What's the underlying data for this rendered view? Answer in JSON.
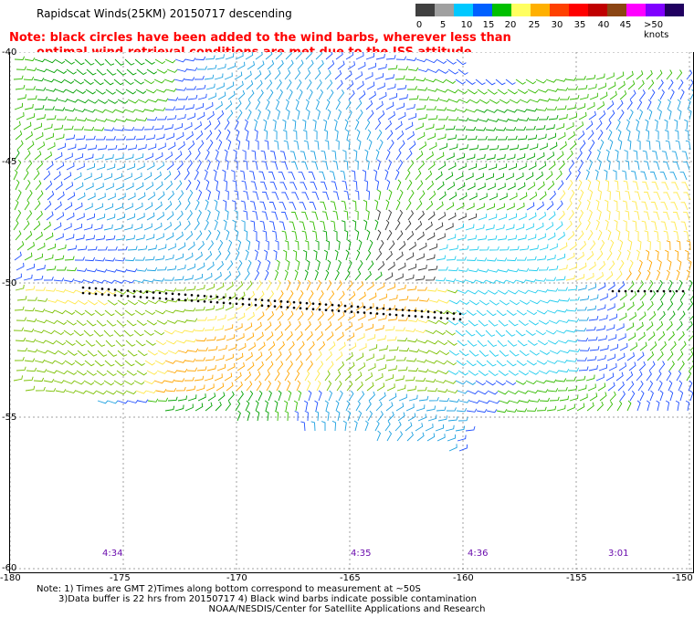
{
  "title": "Rapidscat Winds(25KM) 20150717 descending",
  "note": {
    "line1": "Note: black circles have been added to the wind barbs, wherever less than",
    "line2": "optimal wind retrieval conditions are met due to the ISS attitude changes."
  },
  "legend": {
    "labels": [
      "0",
      "5",
      "10",
      "15",
      "20",
      "25",
      "30",
      "35",
      "40",
      "45",
      ">50 knots"
    ],
    "colors": [
      "#404040",
      "#a0a0a0",
      "#00c8ff",
      "#0060ff",
      "#00c000",
      "#ffff60",
      "#ffb000",
      "#ff4000",
      "#ff0000",
      "#c00000",
      "#8b4513",
      "#ff00ff",
      "#8000ff",
      "#200060"
    ]
  },
  "axes": {
    "lat_labels": [
      "-40",
      "-45",
      "-50",
      "-55",
      "-60"
    ],
    "lon_labels": [
      "-180",
      "-175",
      "-170",
      "-165",
      "-160",
      "-155",
      "-150"
    ]
  },
  "times": [
    "4:34",
    "4:35",
    "4:36",
    "3:01"
  ],
  "footer": {
    "line1": "Note: 1) Times are GMT 2)Times along bottom correspond to measurement at ~50S",
    "line2": "3)Data buffer is 22 hrs from 20150717 4) Black wind barbs indicate possible contamination",
    "line3": "NOAA/NESDIS/Center for Satellite Applications and Research"
  }
}
